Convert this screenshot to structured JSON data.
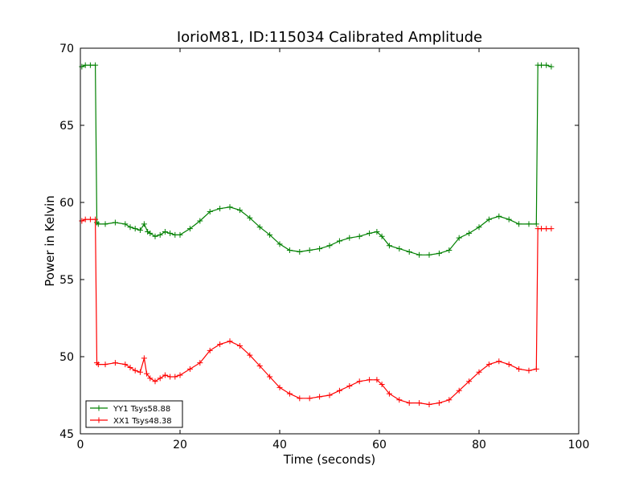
{
  "chart_data": {
    "type": "line",
    "title": "IorioM81, ID:115034 Calibrated Amplitude",
    "xlabel": "Time (seconds)",
    "ylabel": "Power in Kelvin",
    "xlim": [
      0,
      100
    ],
    "ylim": [
      45,
      70
    ],
    "xticks": [
      0,
      20,
      40,
      60,
      80,
      100
    ],
    "yticks": [
      45,
      50,
      55,
      60,
      65,
      70
    ],
    "grid": false,
    "legend_position": "lower-left",
    "marker": "+",
    "series": [
      {
        "name": "YY1 Tsys58.88",
        "color": "#008000",
        "x": [
          0.3,
          1,
          2,
          3,
          3.3,
          3.6,
          5,
          7,
          9,
          10,
          11,
          12,
          12.8,
          13.5,
          14,
          15,
          16,
          17,
          18,
          19,
          20,
          22,
          24,
          26,
          28,
          30,
          32,
          34,
          36,
          38,
          40,
          42,
          44,
          46,
          48,
          50,
          52,
          54,
          56,
          58,
          59.5,
          60.5,
          62,
          64,
          66,
          68,
          70,
          72,
          74,
          76,
          78,
          80,
          82,
          84,
          86,
          88,
          90,
          91.5,
          91.8,
          92.5,
          93.5,
          94.5
        ],
        "values": [
          68.8,
          68.9,
          68.9,
          68.9,
          58.7,
          58.6,
          58.6,
          58.7,
          58.6,
          58.4,
          58.3,
          58.2,
          58.6,
          58.1,
          58.0,
          57.8,
          57.9,
          58.1,
          58.0,
          57.9,
          57.9,
          58.3,
          58.8,
          59.4,
          59.6,
          59.7,
          59.5,
          59.0,
          58.4,
          57.9,
          57.3,
          56.9,
          56.8,
          56.9,
          57.0,
          57.2,
          57.5,
          57.7,
          57.8,
          58.0,
          58.1,
          57.8,
          57.2,
          57.0,
          56.8,
          56.6,
          56.6,
          56.7,
          56.9,
          57.7,
          58.0,
          58.4,
          58.9,
          59.1,
          58.9,
          58.6,
          58.6,
          58.6,
          68.9,
          68.9,
          68.9,
          68.8
        ]
      },
      {
        "name": "XX1 Tsys48.38",
        "color": "#ff0000",
        "x": [
          0.3,
          1,
          2,
          3,
          3.3,
          3.6,
          5,
          7,
          9,
          10,
          11,
          12,
          12.8,
          13.3,
          14,
          15,
          16,
          17,
          18,
          19,
          20,
          22,
          24,
          26,
          28,
          30,
          32,
          34,
          36,
          38,
          40,
          42,
          44,
          46,
          48,
          50,
          52,
          54,
          56,
          58,
          59.5,
          60.5,
          62,
          64,
          66,
          68,
          70,
          72,
          74,
          76,
          78,
          80,
          82,
          84,
          86,
          88,
          90,
          91.5,
          91.8,
          92.5,
          93.5,
          94.5
        ],
        "values": [
          58.8,
          58.9,
          58.9,
          58.9,
          49.6,
          49.5,
          49.5,
          49.6,
          49.5,
          49.3,
          49.1,
          49.0,
          49.9,
          48.9,
          48.6,
          48.4,
          48.6,
          48.8,
          48.7,
          48.7,
          48.8,
          49.2,
          49.6,
          50.4,
          50.8,
          51.0,
          50.7,
          50.1,
          49.4,
          48.7,
          48.0,
          47.6,
          47.3,
          47.3,
          47.4,
          47.5,
          47.8,
          48.1,
          48.4,
          48.5,
          48.5,
          48.2,
          47.6,
          47.2,
          47.0,
          47.0,
          46.9,
          47.0,
          47.2,
          47.8,
          48.4,
          49.0,
          49.5,
          49.7,
          49.5,
          49.2,
          49.1,
          49.2,
          58.3,
          58.3,
          58.3,
          58.3
        ]
      }
    ]
  }
}
